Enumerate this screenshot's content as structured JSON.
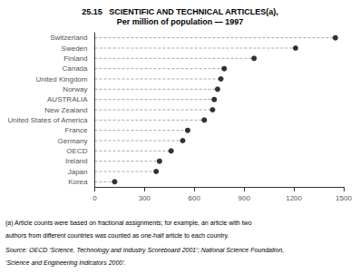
{
  "chart_data": {
    "type": "dot",
    "title": "25.15   SCIENTIFIC AND TECHNICAL ARTICLES(a),",
    "subtitle": "Per million of population — 1997",
    "categories": [
      "Switzerland",
      "Sweden",
      "Finland",
      "Canada",
      "United Kingdom",
      "Norway",
      "AUSTRALIA",
      "New Zealand",
      "United States of America",
      "France",
      "Germany",
      "OECD",
      "Ireland",
      "Japan",
      "Korea"
    ],
    "values": [
      1450,
      1210,
      960,
      780,
      760,
      740,
      720,
      710,
      660,
      560,
      530,
      460,
      390,
      370,
      120
    ],
    "color": "#000000",
    "marker": "circle",
    "line_style": "dashed",
    "orientation": "horizontal",
    "xlim": [
      0,
      1500
    ],
    "xticks": [
      0,
      300,
      600,
      900,
      1200,
      1500
    ],
    "grid": false,
    "annotations": [
      "(a) Article counts were based on fractional assignments; for example, an article with two",
      "authors from different countries was counted as one-half article to each country.",
      "Source: OECD ‘Science, Technology and Industry Scoreboard 2001’; National Science Foundation,",
      "‘Science and Engineering Indicators 2000’."
    ]
  }
}
